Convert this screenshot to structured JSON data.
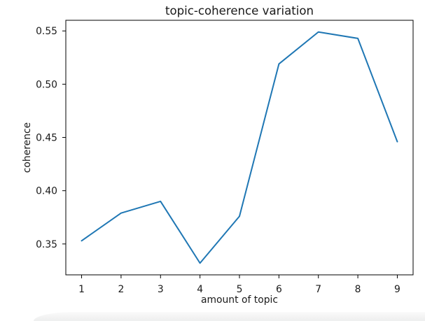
{
  "chart_data": {
    "type": "line",
    "title": "topic-coherence variation",
    "xlabel": "amount of topic",
    "ylabel": "coherence",
    "x": [
      1,
      2,
      3,
      4,
      5,
      6,
      7,
      8,
      9
    ],
    "values": [
      0.353,
      0.379,
      0.39,
      0.332,
      0.376,
      0.519,
      0.549,
      0.543,
      0.446
    ],
    "series_name": "coherence",
    "xtick_labels": [
      "1",
      "2",
      "3",
      "4",
      "5",
      "6",
      "7",
      "8",
      "9"
    ],
    "ytick_values": [
      0.35,
      0.4,
      0.45,
      0.5,
      0.55
    ],
    "ytick_labels": [
      "0.35",
      "0.40",
      "0.45",
      "0.50",
      "0.55"
    ],
    "xlim": [
      0.6,
      9.4
    ],
    "ylim": [
      0.321,
      0.56
    ],
    "grid": false,
    "legend": "none",
    "line_color": "#1f77b4"
  },
  "colors": {
    "background": "#ffffff",
    "text": "#1a1a1a",
    "spine": "#000000",
    "panel_edge": "#eff0f0"
  }
}
